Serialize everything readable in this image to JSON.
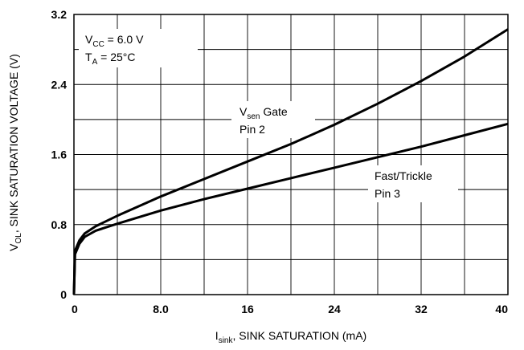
{
  "chart_data": {
    "type": "line",
    "xlabel": {
      "main": "I",
      "sub": "sink",
      "rest": ", SINK SATURATION (mA)"
    },
    "ylabel": {
      "main": "V",
      "sub": "OL",
      "rest": ", SINK SATURATION VOLTAGE (V)"
    },
    "xlim": [
      0,
      40
    ],
    "ylim": [
      0,
      3.2
    ],
    "xticks": [
      0,
      8,
      16,
      24,
      32,
      40
    ],
    "xtick_labels": [
      "0",
      "8.0",
      "16",
      "24",
      "32",
      "40"
    ],
    "yticks": [
      0,
      0.8,
      1.6,
      2.4,
      3.2
    ],
    "ytick_labels": [
      "0",
      "0.8",
      "1.6",
      "2.4",
      "3.2"
    ],
    "grid": true,
    "conditions": [
      {
        "main": "V",
        "sub": "CC",
        "rest": " = 6.0 V"
      },
      {
        "main": "T",
        "sub": "A",
        "rest": " = 25°C"
      }
    ],
    "series": [
      {
        "name": "Vsen Gate Pin 2",
        "label_line1": {
          "main": "V",
          "sub": "sen",
          "rest": " Gate"
        },
        "label_line2": "Pin 2",
        "x": [
          0,
          0.1,
          0.5,
          1,
          2,
          4,
          8,
          12,
          16,
          20,
          24,
          28,
          32,
          36,
          40
        ],
        "y": [
          0,
          0.5,
          0.62,
          0.7,
          0.78,
          0.9,
          1.12,
          1.32,
          1.52,
          1.72,
          1.94,
          2.18,
          2.44,
          2.72,
          3.03
        ]
      },
      {
        "name": "Fast/Trickle Pin 3",
        "label_line1": {
          "main": "Fast/Trickle",
          "sub": "",
          "rest": ""
        },
        "label_line2": "Pin 3",
        "x": [
          0,
          0.1,
          0.5,
          1,
          2,
          4,
          8,
          12,
          16,
          20,
          24,
          28,
          32,
          36,
          40
        ],
        "y": [
          0,
          0.46,
          0.58,
          0.66,
          0.73,
          0.81,
          0.96,
          1.09,
          1.21,
          1.33,
          1.45,
          1.57,
          1.69,
          1.82,
          1.95
        ]
      }
    ]
  }
}
